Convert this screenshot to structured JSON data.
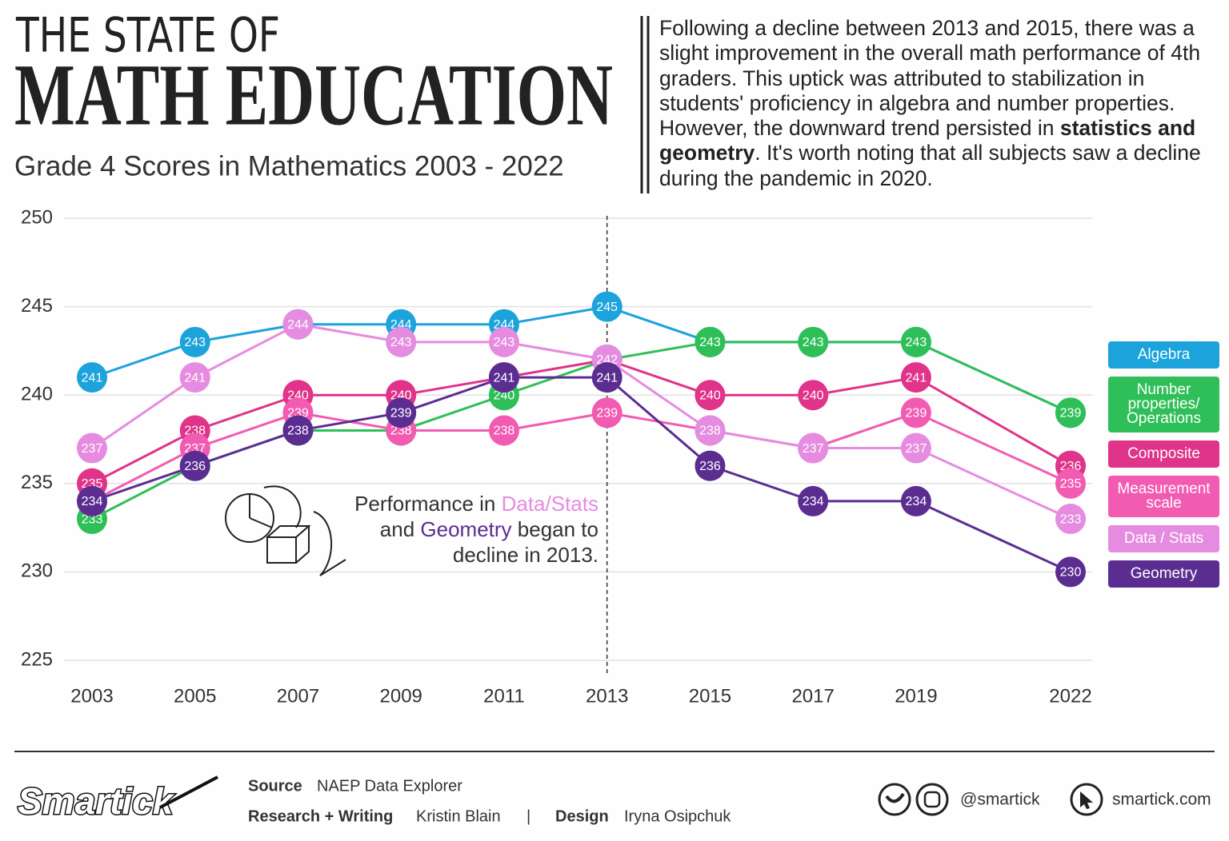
{
  "header": {
    "title_line1": "THE STATE OF",
    "title_line2": "MATH EDUCATION",
    "subtitle": "Grade 4 Scores in Mathematics 2003 - 2022",
    "description": {
      "before": "Following a decline between 2013 and 2015, there was a slight improvement in the overall math performance of 4th graders. This uptick was attributed to stabilization in students' proficiency in algebra and number properties. However, the downward trend persisted in ",
      "bold": "statistics and geometry",
      "after": ". It's worth noting that all subjects saw a decline during the pandemic in 2020."
    }
  },
  "chart_data": {
    "type": "line",
    "x": [
      2003,
      2005,
      2007,
      2009,
      2011,
      2013,
      2015,
      2017,
      2019,
      2022
    ],
    "xlim": [
      2003,
      2022
    ],
    "xticks": [
      2003,
      2005,
      2007,
      2009,
      2011,
      2013,
      2015,
      2017,
      2019,
      2022
    ],
    "ylim": [
      225,
      250
    ],
    "yticks": [
      225,
      230,
      235,
      240,
      245,
      250
    ],
    "grid": true,
    "series": [
      {
        "name": "Algebra",
        "color": "#1ca3dc",
        "values": [
          241,
          243,
          244,
          244,
          244,
          245,
          243,
          243,
          243,
          239
        ]
      },
      {
        "name": "Number properties/ Operations",
        "color": "#2fbf58",
        "values": [
          233,
          236,
          238,
          238,
          240,
          242,
          243,
          243,
          243,
          239
        ]
      },
      {
        "name": "Composite",
        "color": "#e0338a",
        "values": [
          235,
          238,
          240,
          240,
          241,
          242,
          240,
          240,
          241,
          236
        ]
      },
      {
        "name": "Measurement scale",
        "color": "#f25bb2",
        "values": [
          234,
          237,
          239,
          238,
          238,
          239,
          238,
          237,
          239,
          235
        ]
      },
      {
        "name": "Data / Stats",
        "color": "#e58ce0",
        "values": [
          237,
          241,
          244,
          243,
          243,
          242,
          238,
          237,
          237,
          233
        ]
      },
      {
        "name": "Geometry",
        "color": "#5b2d91",
        "values": [
          234,
          236,
          238,
          239,
          241,
          241,
          236,
          234,
          234,
          230
        ]
      }
    ],
    "annotation": {
      "part1": "Performance in ",
      "part2": "Data/Stats",
      "part3": " and ",
      "part4": "Geometry",
      "part5": " began to",
      "part6": "decline in 2013."
    }
  },
  "footer": {
    "logo": "Smartick",
    "source_label": "Source",
    "source": "NAEP Data Explorer",
    "research_label": "Research + Writing",
    "research": "Kristin Blain",
    "separator": "|",
    "design_label": "Design",
    "design": "Iryna Osipchuk",
    "social": "@smartick",
    "website": "smartick.com"
  }
}
